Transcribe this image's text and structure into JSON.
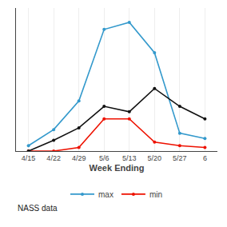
{
  "chart_data": {
    "type": "line",
    "categories": [
      "4/15",
      "4/22",
      "4/29",
      "5/6",
      "5/13",
      "5/20",
      "5/27",
      "6"
    ],
    "series": [
      {
        "name": "max",
        "color": "#3399CC",
        "marker": "circle",
        "line_style": "solid",
        "values": [
          3,
          12,
          28,
          68,
          72,
          55,
          10,
          7
        ]
      },
      {
        "name": "min",
        "color": "#EE1100",
        "marker": "circle",
        "line_style": "solid",
        "values": [
          0,
          0,
          2,
          18,
          18,
          5,
          3,
          2
        ]
      },
      {
        "color": "#111111",
        "marker": "circle",
        "line_style": "solid",
        "values": [
          0,
          6,
          13,
          25,
          22,
          35,
          25,
          18
        ]
      }
    ],
    "xlabel": "Week Ending",
    "annotations": [
      "NASS data"
    ],
    "ylim": [
      0,
      80
    ],
    "yticks": [],
    "grid": true,
    "tick_labels": "x",
    "legend": "bottom"
  }
}
